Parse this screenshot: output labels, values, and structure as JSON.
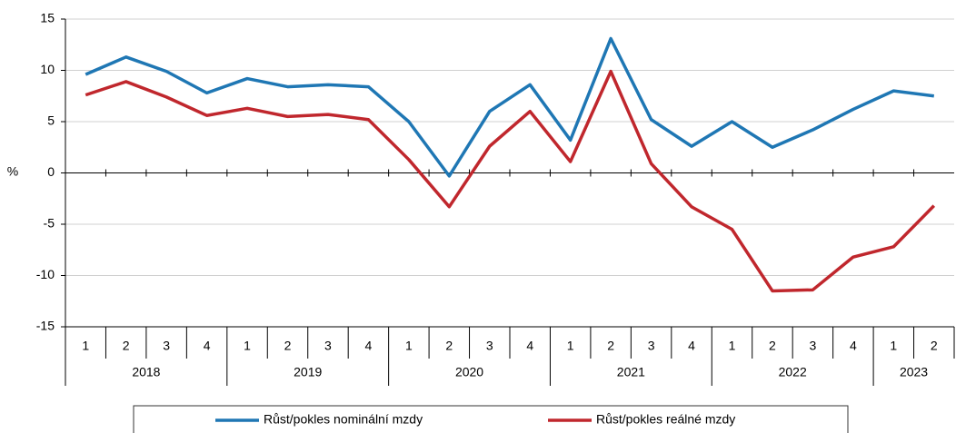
{
  "chart_data": {
    "type": "line",
    "y_label": "%",
    "categories": [
      "1",
      "2",
      "3",
      "4",
      "1",
      "2",
      "3",
      "4",
      "1",
      "2",
      "3",
      "4",
      "1",
      "2",
      "3",
      "4",
      "1",
      "2",
      "3",
      "4",
      "1",
      "2"
    ],
    "years": [
      "2018",
      "2019",
      "2020",
      "2021",
      "2022",
      "2023"
    ],
    "series": [
      {
        "name": "Růst/pokles nominální mzdy",
        "color": "#1f77b4",
        "values": [
          9.6,
          11.3,
          9.9,
          7.8,
          9.2,
          8.4,
          8.6,
          8.4,
          5.0,
          -0.3,
          6.0,
          8.6,
          3.2,
          13.1,
          5.2,
          2.6,
          5.0,
          2.5,
          4.2,
          6.2,
          8.0,
          7.5
        ]
      },
      {
        "name": "Růst/pokles reálné mzdy",
        "color": "#c0272d",
        "values": [
          7.6,
          8.9,
          7.4,
          5.6,
          6.3,
          5.5,
          5.7,
          5.2,
          1.3,
          -3.3,
          2.6,
          6.0,
          1.1,
          9.9,
          0.9,
          -3.3,
          -5.5,
          -11.5,
          -11.4,
          -8.2,
          -7.2,
          -3.2
        ]
      }
    ],
    "ylim": [
      -15,
      15
    ],
    "yticks": [
      -15,
      -10,
      -5,
      0,
      5,
      10,
      15
    ],
    "grid": true
  }
}
